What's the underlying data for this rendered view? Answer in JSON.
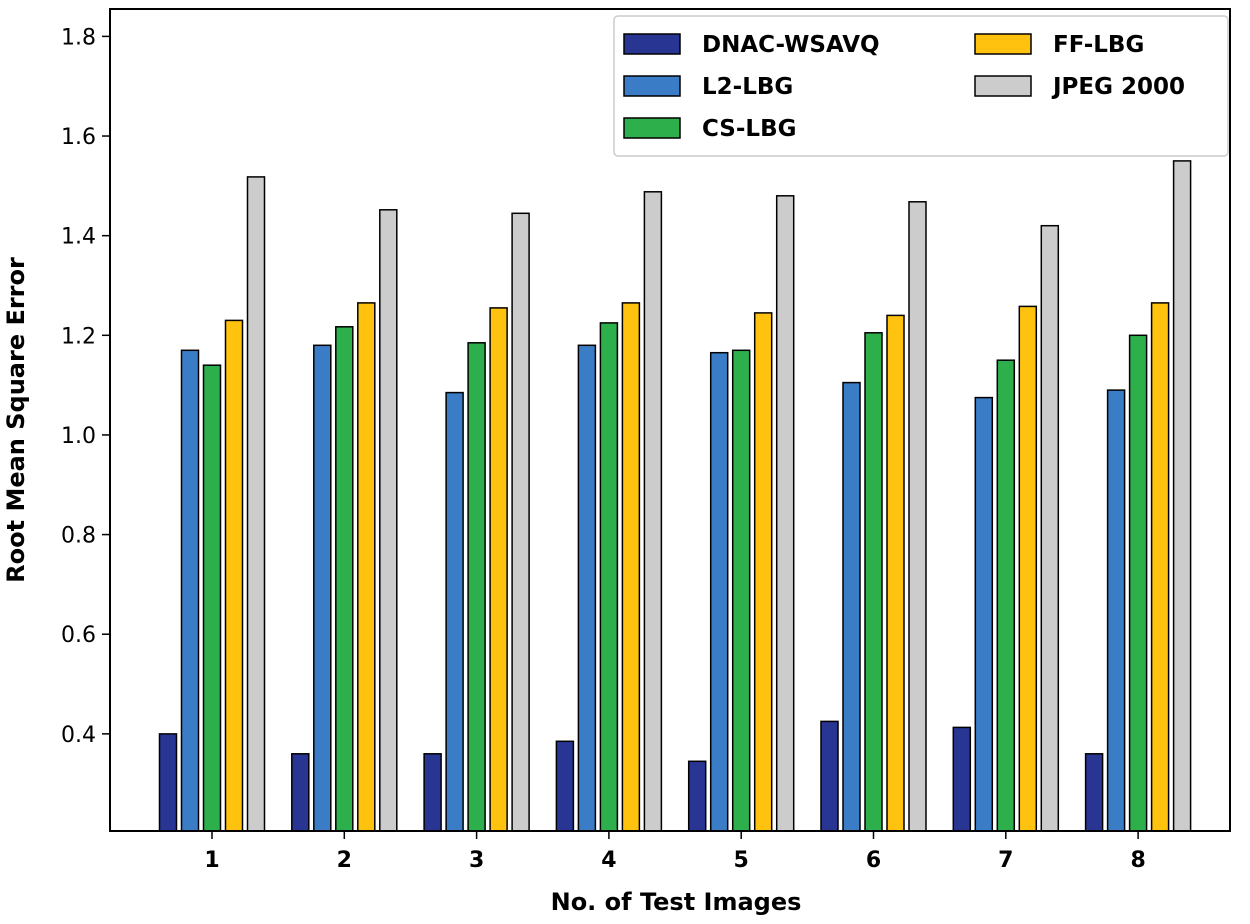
{
  "chart_data": {
    "type": "bar",
    "xlabel": "No. of Test Images",
    "ylabel": "Root Mean Square Error",
    "categories": [
      "1",
      "2",
      "3",
      "4",
      "5",
      "6",
      "7",
      "8"
    ],
    "ylim": [
      0.205,
      1.855
    ],
    "yticks": [
      0.4,
      0.6,
      0.8,
      1.0,
      1.2,
      1.4,
      1.6,
      1.8
    ],
    "ytick_labels": [
      "0.4",
      "0.6",
      "0.8",
      "1.0",
      "1.2",
      "1.4",
      "1.6",
      "1.8"
    ],
    "grid": false,
    "legend_position": "top-right",
    "series": [
      {
        "name": "DNAC-WSAVQ",
        "color": "#283593",
        "values": [
          0.4,
          0.36,
          0.36,
          0.385,
          0.345,
          0.425,
          0.413,
          0.36
        ]
      },
      {
        "name": "L2-LBG",
        "color": "#3a7dc6",
        "values": [
          1.17,
          1.18,
          1.085,
          1.18,
          1.165,
          1.105,
          1.075,
          1.09
        ]
      },
      {
        "name": "CS-LBG",
        "color": "#2db04b",
        "values": [
          1.14,
          1.217,
          1.185,
          1.225,
          1.17,
          1.205,
          1.15,
          1.2
        ]
      },
      {
        "name": "FF-LBG",
        "color": "#ffc20e",
        "values": [
          1.23,
          1.265,
          1.255,
          1.265,
          1.245,
          1.24,
          1.258,
          1.265
        ]
      },
      {
        "name": "JPEG 2000",
        "color": "#cccccc",
        "values": [
          1.518,
          1.452,
          1.445,
          1.488,
          1.48,
          1.468,
          1.42,
          1.55
        ]
      }
    ],
    "legend_layout": {
      "columns": [
        [
          "DNAC-WSAVQ",
          "L2-LBG",
          "CS-LBG"
        ],
        [
          "FF-LBG",
          "JPEG 2000"
        ]
      ]
    }
  }
}
